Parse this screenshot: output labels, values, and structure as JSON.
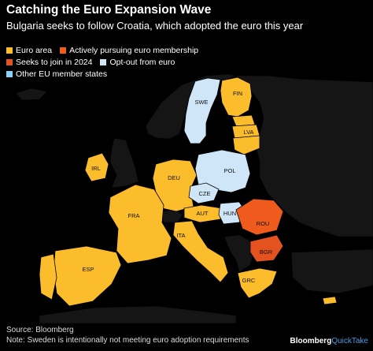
{
  "title": "Catching the Euro Expansion Wave",
  "subtitle": "Bulgaria seeks to follow Croatia, which adopted the euro this year",
  "colors": {
    "euro": "#fbbd2b",
    "pursuing": "#ef5a1d",
    "seeks": "#e4531f",
    "optout": "#cfe6f8",
    "other": "#8cd1f5",
    "nonEU": "#151515",
    "border": "#000000"
  },
  "legend": {
    "euro_area": "Euro area",
    "pursuing": "Actively pursuing euro membership",
    "seeks": "Seeks to join in 2024",
    "optout": "Opt-out from euro",
    "other": "Other EU member states"
  },
  "countries": {
    "SWE": "SWE",
    "FIN": "FIN",
    "LVA": "LVA",
    "IRL": "IRL",
    "DEU": "DEU",
    "POL": "POL",
    "CZE": "CZE",
    "FRA": "FRA",
    "AUT": "AUT",
    "HUN": "HUN",
    "ROU": "ROU",
    "ITA": "ITA",
    "BGR": "BGR",
    "ESP": "ESP",
    "GRC": "GRC"
  },
  "source": "Source: Bloomberg",
  "note": "Note: Sweden is intentionally not meeting euro adoption requirements",
  "brand": {
    "name": "Bloomberg",
    "sub": "QuickTake"
  }
}
